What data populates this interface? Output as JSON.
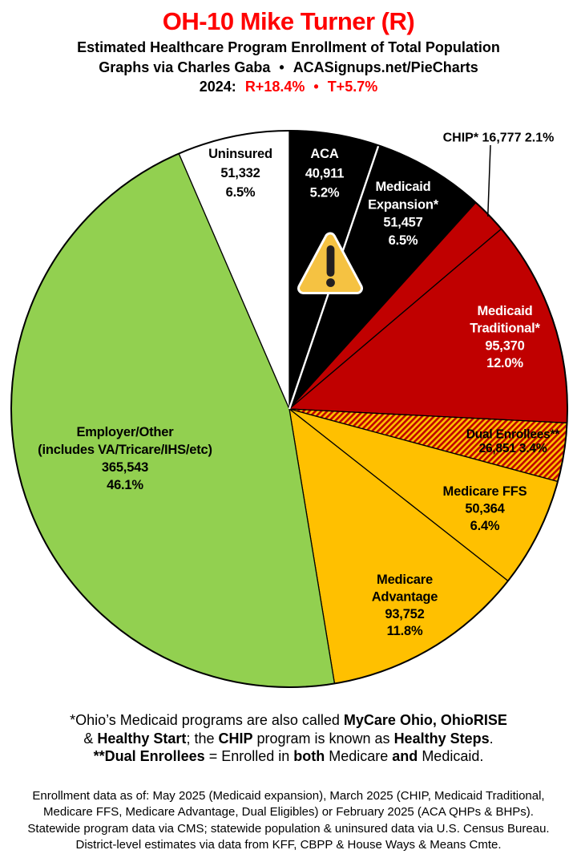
{
  "header": {
    "title": "OH-10 Mike Turner (R)",
    "title_color": "#FF0000",
    "subtitle": "Estimated Healthcare Program Enrollment of Total Population",
    "credit": {
      "author": "Graphs via Charles Gaba",
      "bullet": "•",
      "site": "ACASignups.net/PieCharts"
    },
    "partisan": {
      "year": "2024:",
      "r_lean": "R+18.4%",
      "bullet": "•",
      "t_lean": "T+5.7%",
      "accent_color": "#FF0000"
    }
  },
  "chart_data": {
    "type": "pie",
    "start_angle_deg": 0,
    "direction": "clockwise",
    "outline_color": "#000000",
    "black_slice_divider_color": "#FFFFFF",
    "slices": [
      {
        "key": "aca",
        "label": "ACA",
        "value": 40911,
        "value_display": "40,911",
        "pct": 5.2,
        "pct_display": "5.2%",
        "color": "#000000",
        "label_color": "#FFFFFF",
        "label_lines": [
          "ACA",
          "40,911",
          "5.2%"
        ]
      },
      {
        "key": "medicaid_expansion",
        "label": "Medicaid Expansion*",
        "value": 51457,
        "value_display": "51,457",
        "pct": 6.5,
        "pct_display": "6.5%",
        "color": "#000000",
        "label_color": "#FFFFFF",
        "label_lines": [
          "Medicaid",
          "Expansion*",
          "51,457",
          "6.5%"
        ]
      },
      {
        "key": "chip",
        "label": "CHIP*",
        "value": 16777,
        "value_display": "16,777",
        "pct": 2.1,
        "pct_display": "2.1%",
        "color": "#C00000",
        "label_color": "#000000",
        "external_label": "CHIP* 16,777 2.1%"
      },
      {
        "key": "medicaid_traditional",
        "label": "Medicaid Traditional*",
        "value": 95370,
        "value_display": "95,370",
        "pct": 12.0,
        "pct_display": "12.0%",
        "color": "#C00000",
        "label_color": "#FFFFFF",
        "label_lines": [
          "Medicaid",
          "Traditional*",
          "95,370",
          "12.0%"
        ]
      },
      {
        "key": "dual_enrollees",
        "label": "Dual Enrollees**",
        "value": 26851,
        "value_display": "26,851",
        "pct": 3.4,
        "pct_display": "3.4%",
        "color": "hatch",
        "hatch_colors": [
          "#C00000",
          "#FFC000"
        ],
        "label_color": "#000000",
        "label_lines": [
          "Dual Enrollees**",
          "26,851 3.4%"
        ]
      },
      {
        "key": "medicare_ffs",
        "label": "Medicare FFS",
        "value": 50364,
        "value_display": "50,364",
        "pct": 6.4,
        "pct_display": "6.4%",
        "color": "#FFC000",
        "label_color": "#000000",
        "label_lines": [
          "Medicare FFS",
          "50,364",
          "6.4%"
        ]
      },
      {
        "key": "medicare_advantage",
        "label": "Medicare Advantage",
        "value": 93752,
        "value_display": "93,752",
        "pct": 11.8,
        "pct_display": "11.8%",
        "color": "#FFC000",
        "label_color": "#000000",
        "label_lines": [
          "Medicare",
          "Advantage",
          "93,752",
          "11.8%"
        ]
      },
      {
        "key": "employer_other",
        "label": "Employer/Other (includes VA/Tricare/IHS/etc)",
        "value": 365543,
        "value_display": "365,543",
        "pct": 46.1,
        "pct_display": "46.1%",
        "color": "#92D050",
        "label_color": "#000000",
        "label_lines": [
          "Employer/Other",
          "(includes VA/Tricare/IHS/etc)",
          "365,543",
          "46.1%"
        ]
      },
      {
        "key": "uninsured",
        "label": "Uninsured",
        "value": 51332,
        "value_display": "51,332",
        "pct": 6.5,
        "pct_display": "6.5%",
        "color": "#FFFFFF",
        "label_color": "#000000",
        "label_lines": [
          "Uninsured",
          "51,332",
          "6.5%"
        ]
      }
    ],
    "warning_icon": {
      "name": "warning-triangle",
      "fill": "#F5C242",
      "mark_color": "#231F20",
      "border_color": "#FFFFFF"
    }
  },
  "footnotes": {
    "lines": [
      [
        {
          "text": "*Ohio’s Medicaid programs are also called ",
          "bold": false
        },
        {
          "text": "MyCare Ohio, OhioRISE",
          "bold": true
        }
      ],
      [
        {
          "text": "& ",
          "bold": false
        },
        {
          "text": "Healthy Start",
          "bold": true
        },
        {
          "text": "; the ",
          "bold": false
        },
        {
          "text": "CHIP",
          "bold": true
        },
        {
          "text": " program is known as ",
          "bold": false
        },
        {
          "text": "Healthy Steps",
          "bold": true
        },
        {
          "text": ".",
          "bold": false
        }
      ],
      [
        {
          "text": "**Dual Enrollees",
          "bold": true
        },
        {
          "text": " = Enrolled in ",
          "bold": false
        },
        {
          "text": "both",
          "bold": true
        },
        {
          "text": " Medicare ",
          "bold": false
        },
        {
          "text": "and",
          "bold": true
        },
        {
          "text": " Medicaid.",
          "bold": false
        }
      ]
    ]
  },
  "sources": {
    "lines": [
      "Enrollment data as of: May 2025 (Medicaid expansion), March 2025 (CHIP, Medicaid Traditional,",
      "Medicare FFS, Medicare Advantage, Dual Eligibles) or February 2025 (ACA QHPs & BHPs).",
      "Statewide program data via CMS; statewide population & uninsured data via U.S. Census Bureau.",
      "District-level estimates via data from KFF, CBPP & House Ways & Means Cmte."
    ]
  }
}
